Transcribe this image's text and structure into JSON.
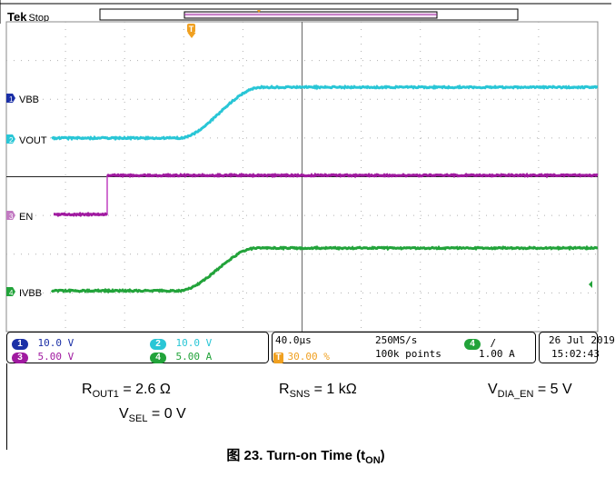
{
  "header": {
    "brand": "Tek",
    "state": "Stop",
    "trigger_marker": "T"
  },
  "channels": [
    {
      "id": "1",
      "name": "VBB",
      "color": "#1a2fa6",
      "label": "VBB"
    },
    {
      "id": "2",
      "name": "VOUT",
      "color": "#29c6d6",
      "label": "VOUT"
    },
    {
      "id": "3",
      "name": "EN",
      "color": "#a01aa0",
      "label": "EN"
    },
    {
      "id": "4",
      "name": "IVBB",
      "color": "#22a33a",
      "label": "IVBB"
    }
  ],
  "status": {
    "ch1": {
      "num": "1",
      "scale": "10.0 V"
    },
    "ch2": {
      "num": "2",
      "scale": "10.0 V"
    },
    "ch3": {
      "num": "3",
      "scale": "5.00 V"
    },
    "ch4": {
      "num": "4",
      "scale": "5.00 A"
    },
    "timebase": "40.0µs",
    "trigger_pos_icon": "T",
    "trigger_pos": "30.00 %",
    "sample_rate": "250MS/s",
    "record_length": "100k points",
    "trig_ch": "4",
    "trig_slope": "∕",
    "trig_level": "1.00 A",
    "date": "26 Jul  2019",
    "time": "15:02:43"
  },
  "params": {
    "rout_main": "R",
    "rout_sub": "OUT1",
    "rout_val": " = 2.6 Ω",
    "rsns_main": "R",
    "rsns_sub": "SNS",
    "rsns_val": " = 1 kΩ",
    "vdia_main": "V",
    "vdia_sub": "DIA_EN",
    "vdia_val": " = 5 V",
    "vsel_main": "V",
    "vsel_sub": "SEL",
    "vsel_val": " = 0 V"
  },
  "caption": {
    "prefix": "图 23. Turn-on Time (t",
    "sub": "ON",
    "suffix": ")"
  },
  "colors": {
    "ch1": "#1a2fa6",
    "ch2": "#29c6d6",
    "ch3": "#a01aa0",
    "ch4": "#22a33a",
    "trigger": "#f0a020",
    "grid": "#b0b0b0"
  }
}
